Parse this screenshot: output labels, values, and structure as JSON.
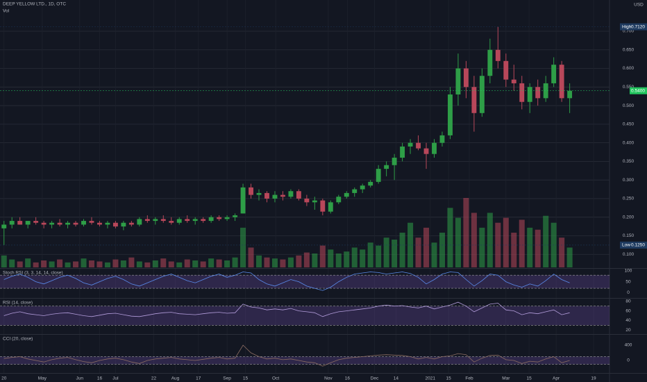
{
  "chart_data": {
    "type": "candlestick",
    "title": "DEEP YELLOW LTD., 1D, OTC",
    "volume_label": "Vol",
    "currency": "USD",
    "up_color": "#2e9e47",
    "down_color": "#b8475a",
    "grid": true,
    "ylim": [
      0.065,
      0.784
    ],
    "yticks": [
      {
        "value": 0.1,
        "label": "0.100"
      },
      {
        "value": 0.15,
        "label": "0.150"
      },
      {
        "value": 0.2,
        "label": "0.200"
      },
      {
        "value": 0.25,
        "label": "0.250"
      },
      {
        "value": 0.3,
        "label": "0.300"
      },
      {
        "value": 0.35,
        "label": "0.350"
      },
      {
        "value": 0.4,
        "label": "0.400"
      },
      {
        "value": 0.45,
        "label": "0.450"
      },
      {
        "value": 0.5,
        "label": "0.500"
      },
      {
        "value": 0.55,
        "label": "0.550"
      },
      {
        "value": 0.6,
        "label": "0.600"
      },
      {
        "value": 0.65,
        "label": "0.650"
      },
      {
        "value": 0.7,
        "label": "0.700"
      }
    ],
    "xlim": [
      -0.5,
      76
    ],
    "xticks": [
      {
        "value": 0,
        "label": "20"
      },
      {
        "value": 4.8,
        "label": "May"
      },
      {
        "value": 9.5,
        "label": "Jun"
      },
      {
        "value": 12,
        "label": "16"
      },
      {
        "value": 14,
        "label": "Jul"
      },
      {
        "value": 18.8,
        "label": "22"
      },
      {
        "value": 21.5,
        "label": "Aug"
      },
      {
        "value": 24.4,
        "label": "17"
      },
      {
        "value": 28,
        "label": "Sep"
      },
      {
        "value": 30.3,
        "label": "15"
      },
      {
        "value": 34.1,
        "label": "Oct"
      },
      {
        "value": 40.7,
        "label": "Nov"
      },
      {
        "value": 43.1,
        "label": "16"
      },
      {
        "value": 46.5,
        "label": "Dec"
      },
      {
        "value": 49.2,
        "label": "14"
      },
      {
        "value": 53.5,
        "label": "2021"
      },
      {
        "value": 55.8,
        "label": "15"
      },
      {
        "value": 58.4,
        "label": "Feb"
      },
      {
        "value": 63,
        "label": "Mar"
      },
      {
        "value": 65.9,
        "label": "15"
      },
      {
        "value": 69.3,
        "label": "Apr"
      },
      {
        "value": 74,
        "label": "19"
      }
    ],
    "high": {
      "name": "High",
      "value": 0.712,
      "label": "0.7120"
    },
    "low": {
      "name": "Low",
      "value": 0.125,
      "label": "0.1250"
    },
    "last": {
      "value": 0.54,
      "label": "0.5400"
    },
    "ohlc": [
      [
        0.17,
        0.19,
        0.125,
        0.18
      ],
      [
        0.18,
        0.2,
        0.17,
        0.19
      ],
      [
        0.19,
        0.2,
        0.18,
        0.18
      ],
      [
        0.18,
        0.19,
        0.17,
        0.19
      ],
      [
        0.19,
        0.2,
        0.18,
        0.185
      ],
      [
        0.185,
        0.19,
        0.17,
        0.18
      ],
      [
        0.18,
        0.19,
        0.17,
        0.185
      ],
      [
        0.185,
        0.195,
        0.175,
        0.18
      ],
      [
        0.18,
        0.19,
        0.17,
        0.185
      ],
      [
        0.185,
        0.19,
        0.175,
        0.18
      ],
      [
        0.18,
        0.195,
        0.175,
        0.19
      ],
      [
        0.19,
        0.2,
        0.18,
        0.185
      ],
      [
        0.185,
        0.19,
        0.175,
        0.18
      ],
      [
        0.18,
        0.19,
        0.17,
        0.185
      ],
      [
        0.185,
        0.19,
        0.17,
        0.175
      ],
      [
        0.175,
        0.19,
        0.165,
        0.185
      ],
      [
        0.185,
        0.19,
        0.175,
        0.18
      ],
      [
        0.18,
        0.2,
        0.175,
        0.195
      ],
      [
        0.195,
        0.205,
        0.185,
        0.19
      ],
      [
        0.19,
        0.2,
        0.18,
        0.195
      ],
      [
        0.195,
        0.205,
        0.185,
        0.19
      ],
      [
        0.19,
        0.2,
        0.18,
        0.185
      ],
      [
        0.185,
        0.2,
        0.18,
        0.195
      ],
      [
        0.195,
        0.205,
        0.185,
        0.19
      ],
      [
        0.19,
        0.2,
        0.18,
        0.195
      ],
      [
        0.195,
        0.2,
        0.185,
        0.19
      ],
      [
        0.19,
        0.205,
        0.185,
        0.2
      ],
      [
        0.2,
        0.205,
        0.19,
        0.195
      ],
      [
        0.195,
        0.205,
        0.19,
        0.2
      ],
      [
        0.2,
        0.21,
        0.19,
        0.205
      ],
      [
        0.21,
        0.29,
        0.21,
        0.28
      ],
      [
        0.28,
        0.29,
        0.25,
        0.26
      ],
      [
        0.26,
        0.275,
        0.245,
        0.265
      ],
      [
        0.265,
        0.27,
        0.24,
        0.25
      ],
      [
        0.25,
        0.27,
        0.24,
        0.26
      ],
      [
        0.26,
        0.27,
        0.245,
        0.255
      ],
      [
        0.255,
        0.275,
        0.25,
        0.27
      ],
      [
        0.27,
        0.275,
        0.245,
        0.25
      ],
      [
        0.25,
        0.26,
        0.23,
        0.24
      ],
      [
        0.24,
        0.255,
        0.22,
        0.245
      ],
      [
        0.245,
        0.25,
        0.205,
        0.215
      ],
      [
        0.215,
        0.245,
        0.21,
        0.24
      ],
      [
        0.24,
        0.26,
        0.235,
        0.255
      ],
      [
        0.255,
        0.27,
        0.25,
        0.265
      ],
      [
        0.265,
        0.28,
        0.255,
        0.275
      ],
      [
        0.275,
        0.29,
        0.265,
        0.285
      ],
      [
        0.285,
        0.3,
        0.28,
        0.295
      ],
      [
        0.295,
        0.34,
        0.29,
        0.33
      ],
      [
        0.33,
        0.35,
        0.31,
        0.34
      ],
      [
        0.34,
        0.37,
        0.3,
        0.36
      ],
      [
        0.36,
        0.4,
        0.35,
        0.39
      ],
      [
        0.39,
        0.41,
        0.37,
        0.4
      ],
      [
        0.4,
        0.42,
        0.38,
        0.385
      ],
      [
        0.385,
        0.4,
        0.33,
        0.37
      ],
      [
        0.37,
        0.41,
        0.36,
        0.4
      ],
      [
        0.4,
        0.43,
        0.39,
        0.42
      ],
      [
        0.42,
        0.55,
        0.41,
        0.53
      ],
      [
        0.53,
        0.64,
        0.5,
        0.6
      ],
      [
        0.6,
        0.62,
        0.52,
        0.55
      ],
      [
        0.55,
        0.58,
        0.43,
        0.48
      ],
      [
        0.48,
        0.6,
        0.47,
        0.58
      ],
      [
        0.58,
        0.68,
        0.56,
        0.65
      ],
      [
        0.65,
        0.712,
        0.6,
        0.62
      ],
      [
        0.62,
        0.64,
        0.55,
        0.57
      ],
      [
        0.57,
        0.61,
        0.54,
        0.56
      ],
      [
        0.56,
        0.58,
        0.49,
        0.51
      ],
      [
        0.51,
        0.56,
        0.48,
        0.55
      ],
      [
        0.55,
        0.57,
        0.5,
        0.52
      ],
      [
        0.52,
        0.58,
        0.51,
        0.56
      ],
      [
        0.56,
        0.63,
        0.55,
        0.61
      ],
      [
        0.61,
        0.62,
        0.51,
        0.52
      ],
      [
        0.52,
        0.56,
        0.48,
        0.54
      ]
    ],
    "volume": [
      12,
      8,
      6,
      9,
      5,
      7,
      6,
      8,
      5,
      6,
      9,
      7,
      6,
      5,
      8,
      7,
      10,
      6,
      5,
      7,
      9,
      6,
      5,
      8,
      7,
      6,
      9,
      8,
      7,
      10,
      40,
      20,
      12,
      10,
      9,
      8,
      10,
      12,
      15,
      14,
      22,
      18,
      14,
      16,
      20,
      18,
      25,
      22,
      30,
      28,
      35,
      45,
      30,
      40,
      25,
      35,
      60,
      50,
      70,
      55,
      40,
      55,
      45,
      50,
      35,
      48,
      40,
      38,
      52,
      45,
      30,
      20
    ],
    "indicators": [
      {
        "name": "Stoch RSI (3, 3, 14, 14, close)",
        "color": "#5b8def",
        "ylim": [
          -21,
          106
        ],
        "yticks": [
          0,
          50,
          100
        ],
        "bands": [
          20,
          80
        ],
        "values": [
          60,
          75,
          85,
          70,
          50,
          40,
          55,
          70,
          80,
          65,
          45,
          35,
          50,
          65,
          75,
          60,
          40,
          30,
          45,
          60,
          75,
          85,
          70,
          55,
          45,
          60,
          75,
          85,
          70,
          80,
          95,
          90,
          60,
          40,
          30,
          45,
          60,
          50,
          30,
          20,
          10,
          25,
          50,
          70,
          85,
          90,
          95,
          92,
          85,
          90,
          95,
          88,
          70,
          40,
          60,
          85,
          95,
          92,
          60,
          30,
          55,
          85,
          80,
          50,
          35,
          25,
          40,
          30,
          55,
          85,
          60,
          45
        ]
      },
      {
        "name": "RSI (14, close)",
        "color": "#b39ddb",
        "ylim": [
          13,
          84
        ],
        "yticks": [
          20,
          40,
          60,
          80
        ],
        "bands": [
          30,
          70
        ],
        "values": [
          50,
          55,
          58,
          54,
          52,
          50,
          53,
          55,
          56,
          53,
          50,
          48,
          51,
          54,
          55,
          52,
          49,
          48,
          51,
          54,
          56,
          57,
          54,
          53,
          52,
          54,
          56,
          57,
          55,
          56,
          74,
          68,
          66,
          62,
          64,
          62,
          65,
          60,
          58,
          56,
          48,
          54,
          58,
          60,
          62,
          64,
          66,
          70,
          72,
          70,
          71,
          68,
          66,
          70,
          64,
          68,
          72,
          78,
          70,
          58,
          66,
          74,
          76,
          62,
          60,
          52,
          56,
          54,
          58,
          62,
          52,
          56
        ]
      },
      {
        "name": "CCI (20, close)",
        "color": "#8d6e63",
        "ylim": [
          -310,
          655
        ],
        "yticks": [
          0,
          400
        ],
        "bands": [
          -100,
          100
        ],
        "values": [
          50,
          80,
          100,
          40,
          0,
          -40,
          20,
          60,
          80,
          20,
          -30,
          -60,
          0,
          40,
          60,
          20,
          -40,
          -80,
          0,
          40,
          60,
          80,
          40,
          20,
          0,
          30,
          60,
          80,
          40,
          60,
          400,
          200,
          100,
          40,
          60,
          20,
          40,
          0,
          -40,
          -60,
          -150,
          -60,
          20,
          60,
          80,
          100,
          120,
          140,
          150,
          140,
          130,
          100,
          40,
          80,
          40,
          100,
          120,
          180,
          150,
          -40,
          60,
          130,
          140,
          20,
          0,
          -80,
          -20,
          -40,
          40,
          100,
          -60,
          0
        ]
      }
    ]
  }
}
